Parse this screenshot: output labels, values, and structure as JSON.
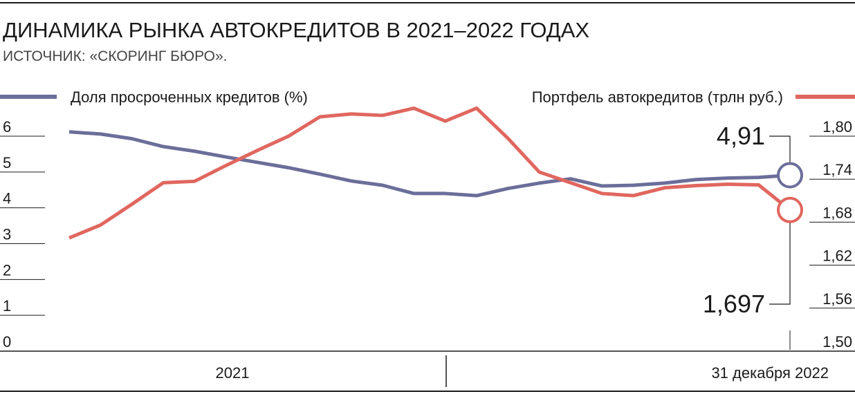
{
  "chart_data": {
    "type": "line",
    "title": "ДИНАМИКА РЫНКА АВТОКРЕДИТОВ В 2021–2022 ГОДАХ",
    "subtitle": "ИСТОЧНИК: «СКОРИНГ БЮРО».",
    "periods": [
      "2021",
      "31 декабря 2022"
    ],
    "series": [
      {
        "name": "Доля просроченных кредитов (%)",
        "color": "#6b6e9a",
        "axis": "y",
        "values": [
          6.12,
          6.06,
          5.93,
          5.71,
          5.58,
          5.42,
          5.27,
          5.12,
          4.94,
          4.75,
          4.63,
          4.4,
          4.4,
          4.34,
          4.54,
          4.69,
          4.81,
          4.61,
          4.63,
          4.69,
          4.79,
          4.83,
          4.85,
          4.91
        ],
        "value_labels": [
          null,
          null,
          null,
          null,
          null,
          null,
          null,
          null,
          null,
          null,
          null,
          null,
          null,
          null,
          null,
          null,
          null,
          null,
          null,
          null,
          null,
          null,
          null,
          "4,91"
        ]
      },
      {
        "name": "Портфель автокредитов (трлн руб.)",
        "color": "#e0675f",
        "axis": "y2",
        "values": [
          1.658,
          1.676,
          1.705,
          1.735,
          1.737,
          1.759,
          1.78,
          1.8,
          1.827,
          1.831,
          1.829,
          1.839,
          1.821,
          1.839,
          1.797,
          1.75,
          1.735,
          1.72,
          1.717,
          1.728,
          1.731,
          1.733,
          1.732,
          1.697
        ],
        "value_labels": [
          null,
          null,
          null,
          null,
          null,
          null,
          null,
          null,
          null,
          null,
          null,
          null,
          null,
          null,
          null,
          null,
          null,
          null,
          null,
          null,
          null,
          null,
          null,
          "1,697"
        ]
      }
    ],
    "ylim": [
      0,
      6
    ],
    "yticks": [
      0,
      1,
      2,
      3,
      4,
      5,
      6
    ],
    "y2lim": [
      1.5,
      1.8
    ],
    "y2ticks": [
      {
        "value": 1.5,
        "label": "1,50"
      },
      {
        "value": 1.56,
        "label": "1,56"
      },
      {
        "value": 1.62,
        "label": "1,62"
      },
      {
        "value": 1.68,
        "label": "1,68"
      },
      {
        "value": 1.74,
        "label": "1,74"
      },
      {
        "value": 1.8,
        "label": "1,80"
      }
    ]
  }
}
